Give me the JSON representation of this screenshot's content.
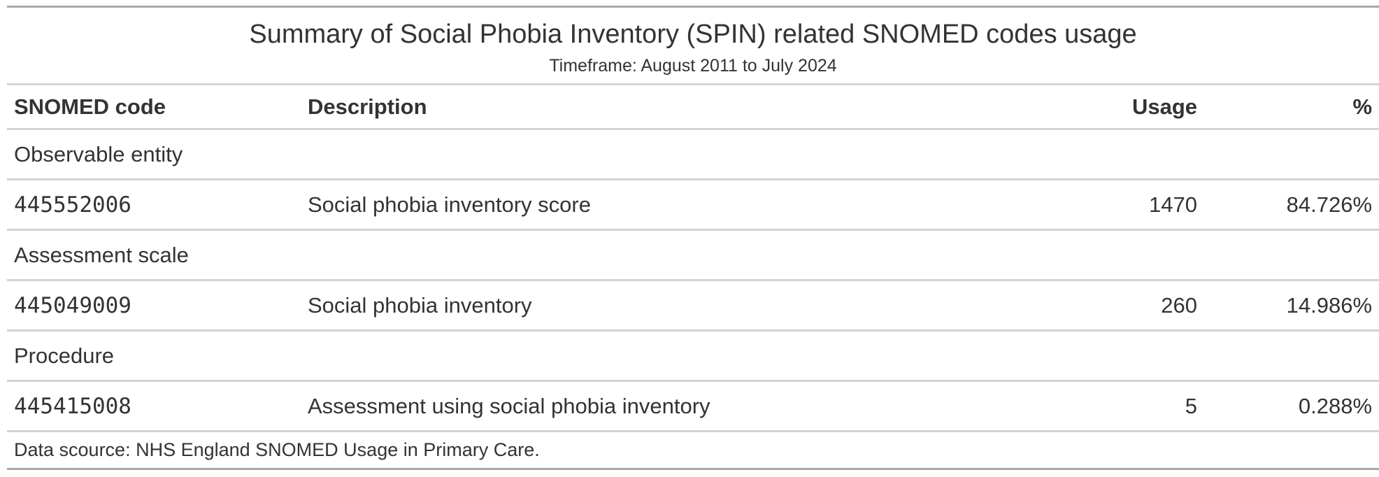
{
  "title": "Summary of Social Phobia Inventory (SPIN) related SNOMED codes usage",
  "subtitle": "Timeframe: August 2011 to July 2024",
  "columns": {
    "code": "SNOMED code",
    "description": "Description",
    "usage": "Usage",
    "percent": "%"
  },
  "groups": [
    {
      "label": "Observable entity",
      "rows": [
        {
          "code": "445552006",
          "description": "Social phobia inventory score",
          "usage": "1470",
          "percent": "84.726%"
        }
      ]
    },
    {
      "label": "Assessment scale",
      "rows": [
        {
          "code": "445049009",
          "description": "Social phobia inventory",
          "usage": "260",
          "percent": "14.986%"
        }
      ]
    },
    {
      "label": "Procedure",
      "rows": [
        {
          "code": "445415008",
          "description": "Assessment using social phobia inventory",
          "usage": "5",
          "percent": "0.288%"
        }
      ]
    }
  ],
  "source_note": "Data scource: NHS England SNOMED Usage in Primary Care."
}
